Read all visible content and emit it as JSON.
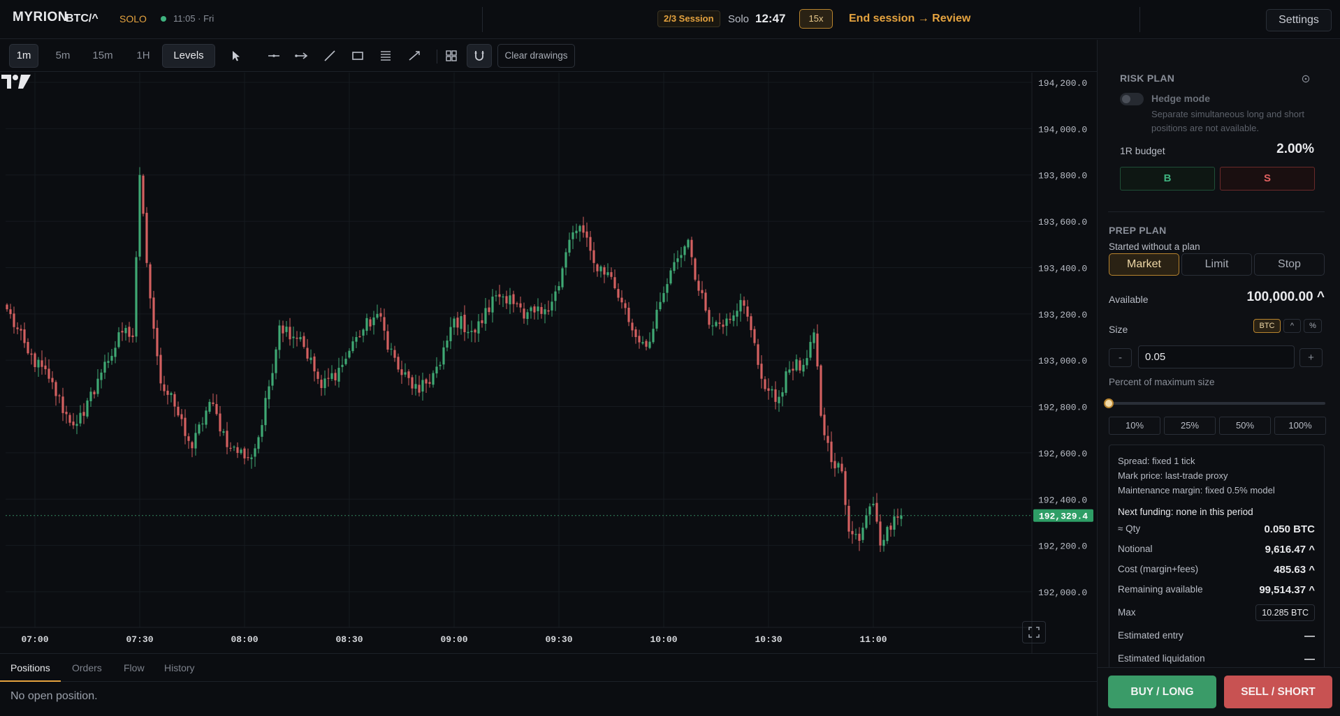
{
  "header": {
    "logo": "MYRION",
    "pair": "BTC/^",
    "mode_tag": "SOLO",
    "clock": "11:05 · Fri",
    "session_badge": "2/3 Session",
    "solo_label": "Solo",
    "timer": "12:47",
    "speed": "15x",
    "end_session": "End session → Review",
    "settings": "Settings"
  },
  "toolbar": {
    "timeframes": [
      "1m",
      "5m",
      "15m",
      "1H"
    ],
    "active_timeframe": "1m",
    "levels": "Levels",
    "clear_drawings": "Clear drawings",
    "tools": [
      "cursor-icon",
      "horizontal-line-icon",
      "horizontal-ray-icon",
      "trend-line-icon",
      "rectangle-icon",
      "fib-levels-icon",
      "ruler-icon",
      "grid-icon",
      "magnet-icon"
    ]
  },
  "chart_data": {
    "type": "candlestick",
    "y_ticks": [
      "194,200.0",
      "194,000.0",
      "193,800.0",
      "193,600.0",
      "193,400.0",
      "193,200.0",
      "193,000.0",
      "192,800.0",
      "192,600.0",
      "192,400.0",
      "192,200.0",
      "192,000.0"
    ],
    "x_ticks": [
      "07:00",
      "07:30",
      "08:00",
      "08:30",
      "09:00",
      "09:30",
      "10:00",
      "10:30",
      "11:00"
    ],
    "ylim": [
      191950,
      194250
    ],
    "last_price": 192329.4,
    "last_price_label": "192,329.4",
    "up_color": "#3fa874",
    "down_color": "#d36060",
    "anchors": [
      [
        0,
        193220
      ],
      [
        6,
        193030
      ],
      [
        12,
        192920
      ],
      [
        18,
        192730
      ],
      [
        22,
        192760
      ],
      [
        26,
        192920
      ],
      [
        33,
        193120
      ],
      [
        36,
        193100
      ],
      [
        38,
        193800
      ],
      [
        40,
        193420
      ],
      [
        44,
        192900
      ],
      [
        48,
        192800
      ],
      [
        53,
        192620
      ],
      [
        58,
        192820
      ],
      [
        64,
        192620
      ],
      [
        70,
        192580
      ],
      [
        73,
        192720
      ],
      [
        78,
        193150
      ],
      [
        84,
        193100
      ],
      [
        90,
        192880
      ],
      [
        96,
        192980
      ],
      [
        100,
        193100
      ],
      [
        106,
        193200
      ],
      [
        112,
        192960
      ],
      [
        118,
        192860
      ],
      [
        124,
        192980
      ],
      [
        128,
        193180
      ],
      [
        134,
        193120
      ],
      [
        140,
        193280
      ],
      [
        144,
        193280
      ],
      [
        148,
        193180
      ],
      [
        154,
        193220
      ],
      [
        158,
        193320
      ],
      [
        161,
        193520
      ],
      [
        164,
        193580
      ],
      [
        168,
        193420
      ],
      [
        172,
        193380
      ],
      [
        176,
        193250
      ],
      [
        180,
        193100
      ],
      [
        184,
        193080
      ],
      [
        188,
        193290
      ],
      [
        192,
        193440
      ],
      [
        195,
        193520
      ],
      [
        198,
        193300
      ],
      [
        202,
        193150
      ],
      [
        206,
        193180
      ],
      [
        210,
        193260
      ],
      [
        213,
        193130
      ],
      [
        216,
        192920
      ],
      [
        220,
        192820
      ],
      [
        224,
        192960
      ],
      [
        228,
        192980
      ],
      [
        231,
        193120
      ],
      [
        233,
        192760
      ],
      [
        236,
        192560
      ],
      [
        239,
        192520
      ],
      [
        241,
        192260
      ],
      [
        244,
        192220
      ],
      [
        246,
        192330
      ],
      [
        248,
        192380
      ],
      [
        250,
        192200
      ],
      [
        252,
        192280
      ],
      [
        255,
        192320
      ],
      [
        256,
        192329
      ]
    ]
  },
  "bottom_tabs": [
    "Positions",
    "Orders",
    "Flow",
    "History"
  ],
  "active_bottom_tab": "Positions",
  "positions_empty": "No open position.",
  "panel": {
    "risk_plan_title": "RISK PLAN",
    "hedge_label": "Hedge mode",
    "hedge_desc": "Separate simultaneous long and short positions are not available.",
    "budget_label": "1R budget",
    "budget_value": "2.00%",
    "b_label": "B",
    "s_label": "S",
    "prep_plan_title": "PREP PLAN",
    "prep_status": "Started without a plan",
    "order_types": [
      "Market",
      "Limit",
      "Stop"
    ],
    "active_order_type": "Market",
    "available_label": "Available",
    "available_value": "100,000.00 ^",
    "size_label": "Size",
    "size_units": [
      "BTC",
      "^",
      "%"
    ],
    "active_unit": "BTC",
    "minus": "-",
    "plus": "+",
    "size_value": "0.05",
    "percent_label": "Percent of maximum size",
    "percent_value": 0,
    "percent_buttons": [
      "10%",
      "25%",
      "50%",
      "100%"
    ],
    "spread": "Spread: fixed 1 tick",
    "mark_price": "Mark price: last-trade proxy",
    "maintenance": "Maintenance margin: fixed 0.5% model",
    "funding": "Next funding: none in this period",
    "rows": [
      {
        "k": "≈ Qty",
        "v": "0.050 BTC"
      },
      {
        "k": "Notional",
        "v": "9,616.47 ^"
      },
      {
        "k": "Cost (margin+fees)",
        "v": "485.63 ^"
      },
      {
        "k": "Remaining available",
        "v": "99,514.37 ^"
      }
    ],
    "max_label": "Max",
    "max_value": "10.285 BTC",
    "est_entry_label": "Estimated entry",
    "est_entry_value": "—",
    "est_liq_label": "Estimated liquidation",
    "est_liq_value": "—",
    "buy_label": "BUY / LONG",
    "sell_label": "SELL / SHORT"
  }
}
